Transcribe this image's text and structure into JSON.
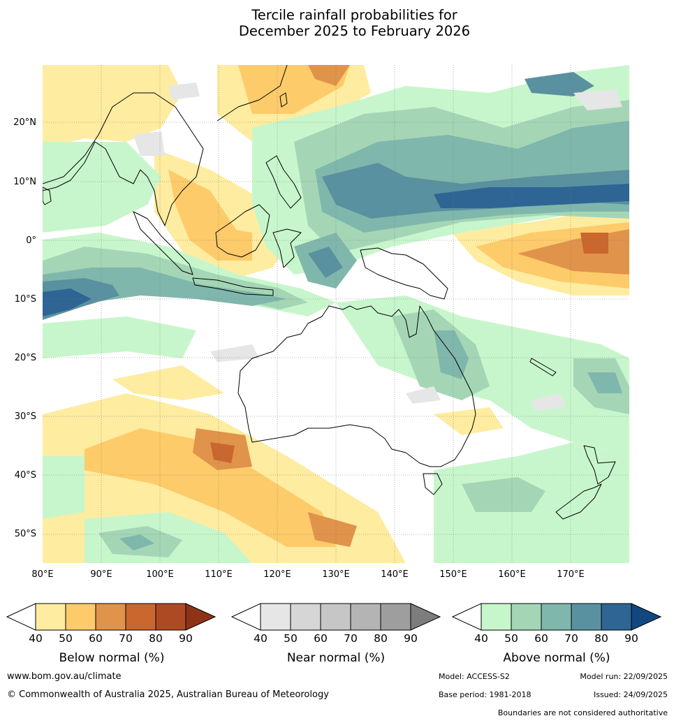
{
  "title": {
    "line1": "Tercile rainfall probabilities for",
    "line2": "December 2025 to February 2026"
  },
  "map": {
    "lat_labels": [
      "20°N",
      "10°N",
      "0°",
      "10°S",
      "20°S",
      "30°S",
      "40°S",
      "50°S"
    ],
    "lon_labels": [
      "80°E",
      "90°E",
      "100°E",
      "110°E",
      "120°E",
      "130°E",
      "140°E",
      "150°E",
      "160°E",
      "170°E"
    ]
  },
  "legends": {
    "below": {
      "title": "Below normal (%)",
      "ticks": [
        "40",
        "50",
        "60",
        "70",
        "80",
        "90"
      ],
      "colors": [
        "#ffffff",
        "#feeca0",
        "#fecb6a",
        "#e0934a",
        "#c9672f",
        "#ad4a24",
        "#8e3318"
      ]
    },
    "near": {
      "title": "Near normal (%)",
      "ticks": [
        "40",
        "50",
        "60",
        "70",
        "80",
        "90"
      ],
      "colors": [
        "#ffffff",
        "#e6e6e6",
        "#d6d6d6",
        "#c6c6c6",
        "#b4b4b4",
        "#9e9e9e",
        "#7d7d7d"
      ]
    },
    "above": {
      "title": "Above normal (%)",
      "ticks": [
        "40",
        "50",
        "60",
        "70",
        "80",
        "90"
      ],
      "colors": [
        "#ffffff",
        "#c8f6cc",
        "#a4d6b6",
        "#80b7ac",
        "#5a91a0",
        "#2e6594",
        "#124780"
      ]
    }
  },
  "footer": {
    "website": "www.bom.gov.au/climate",
    "copyright": "© Commonwealth of Australia 2025, Australian Bureau of Meteorology",
    "model": "Model: ACCESS-S2",
    "model_run": "Model run: 22/09/2025",
    "base_period": "Base period: 1981-2018",
    "issued": "Issued: 24/09/2025",
    "disclaimer": "Boundaries are not considered authoritative"
  }
}
